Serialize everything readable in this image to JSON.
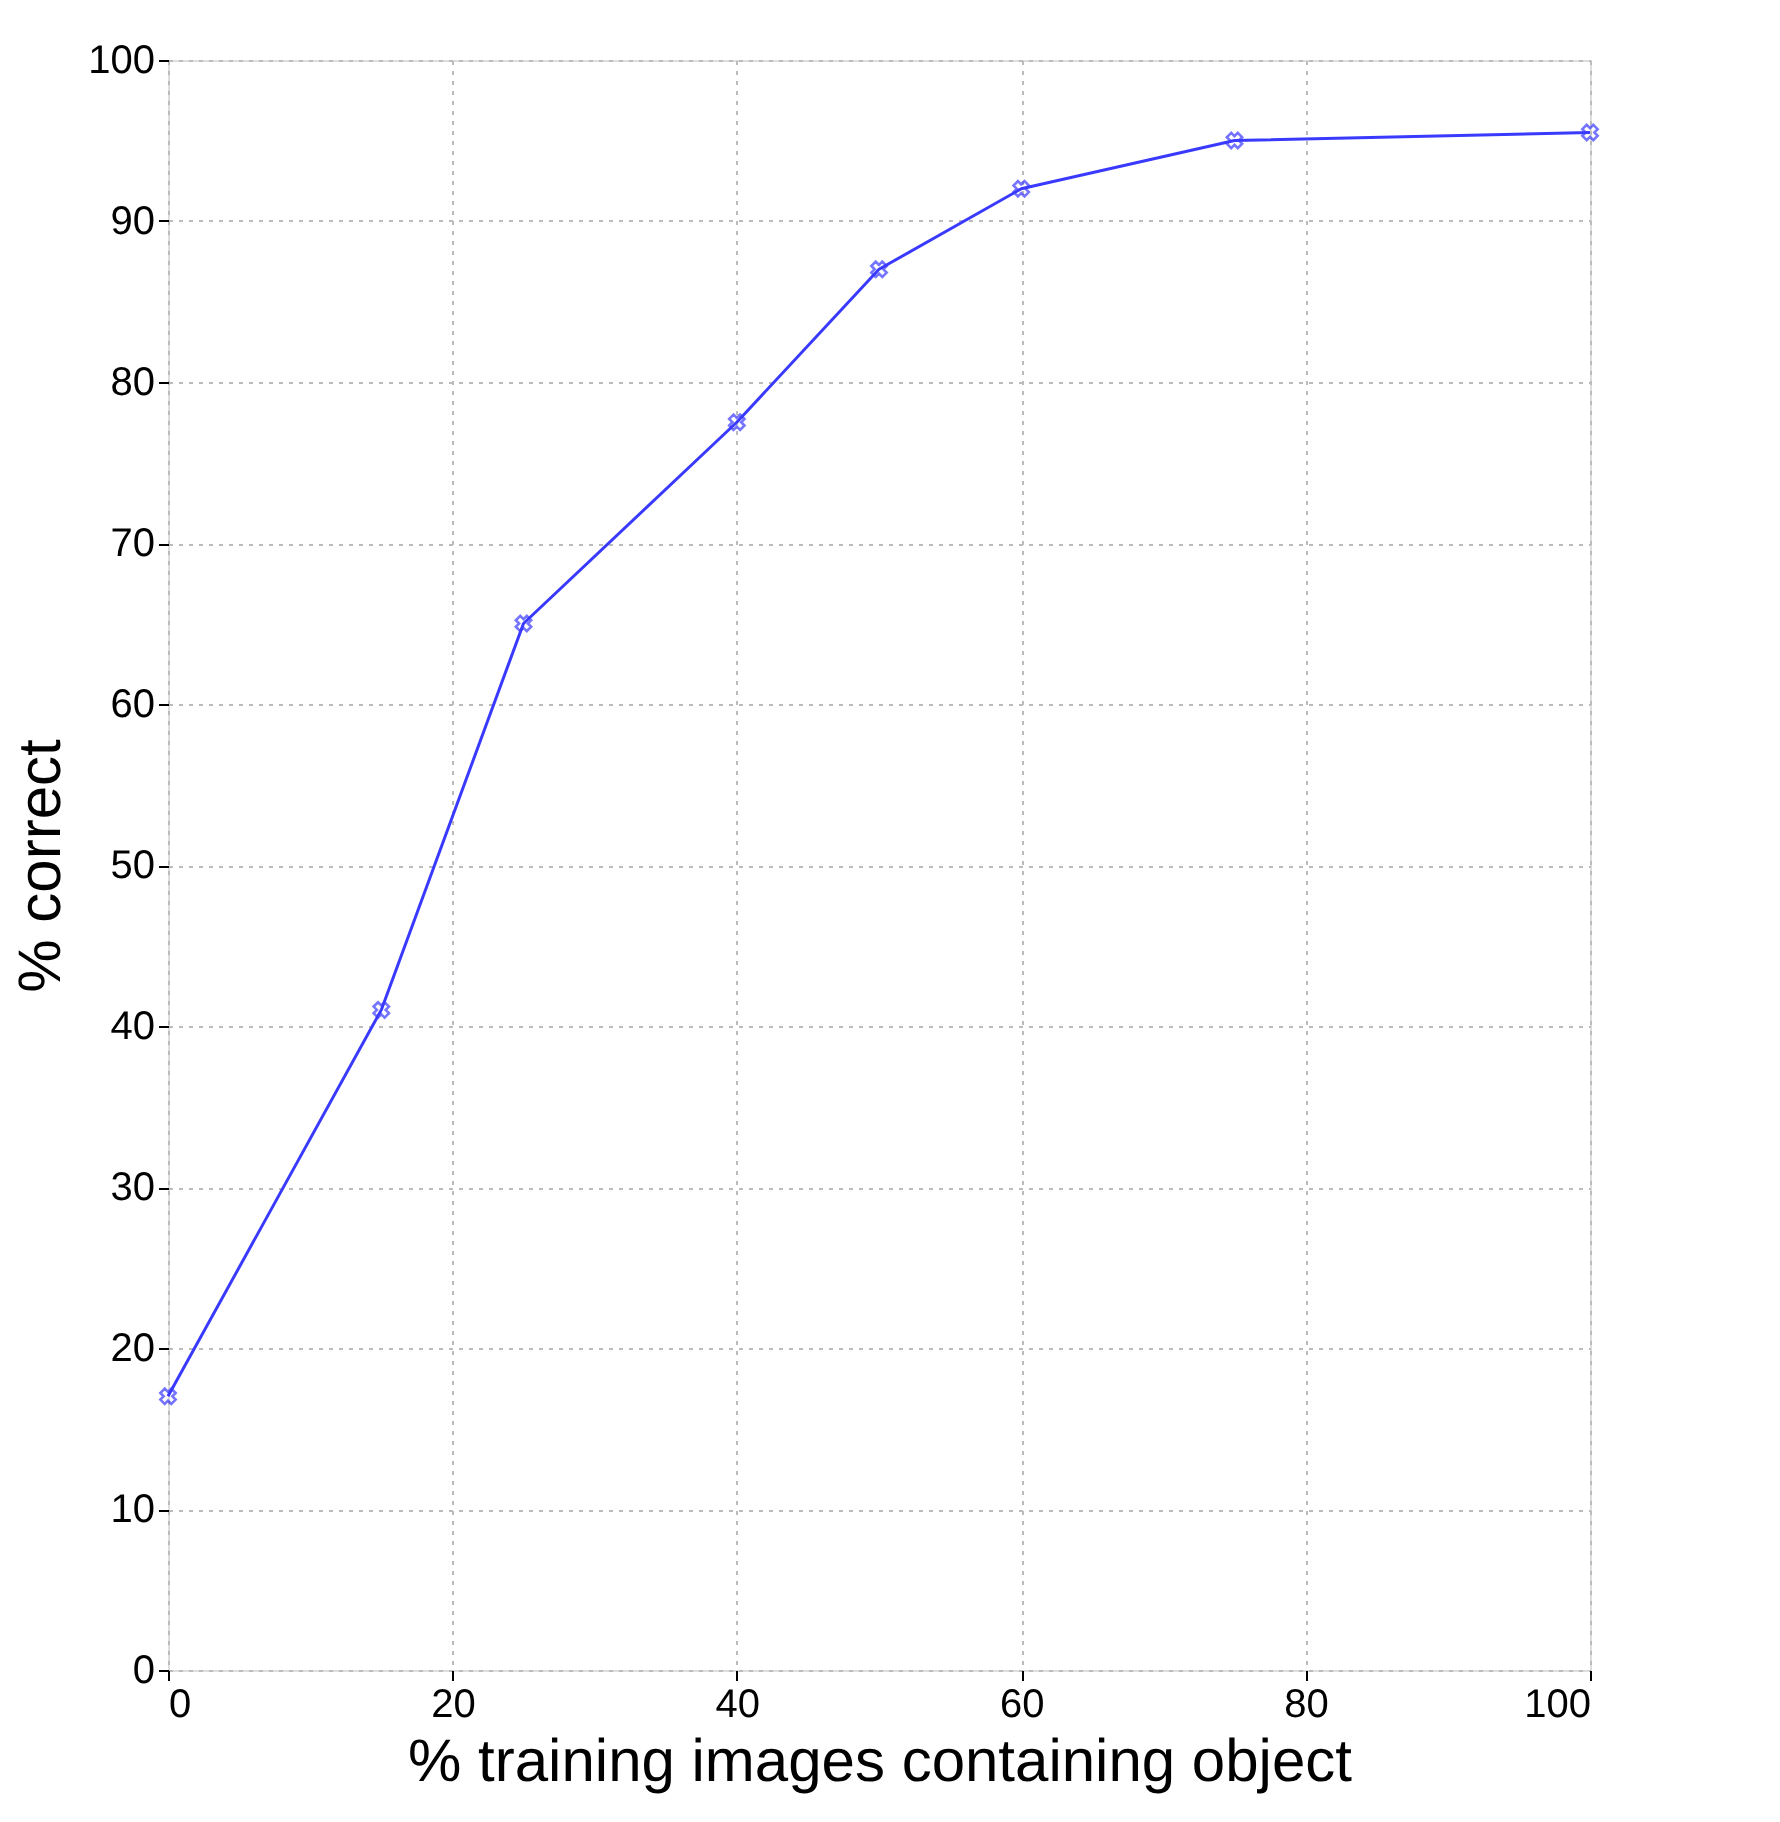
{
  "chart_data": {
    "type": "line",
    "xlabel": "% training images containing object",
    "ylabel": "% correct",
    "x": [
      0,
      15,
      25,
      40,
      50,
      60,
      75,
      100
    ],
    "series": [
      {
        "color": "#3a3aff",
        "values": [
          17,
          41,
          65,
          77.5,
          87,
          92,
          95,
          95.5
        ]
      }
    ],
    "xlim": [
      0,
      100
    ],
    "xticks": [
      0,
      20,
      40,
      60,
      80,
      100
    ],
    "ylim": [
      0,
      100
    ],
    "yticks": [
      0,
      10,
      20,
      30,
      40,
      50,
      60,
      70,
      80,
      90,
      100
    ],
    "grid": true,
    "marker": "cross",
    "line_style": "solid"
  }
}
